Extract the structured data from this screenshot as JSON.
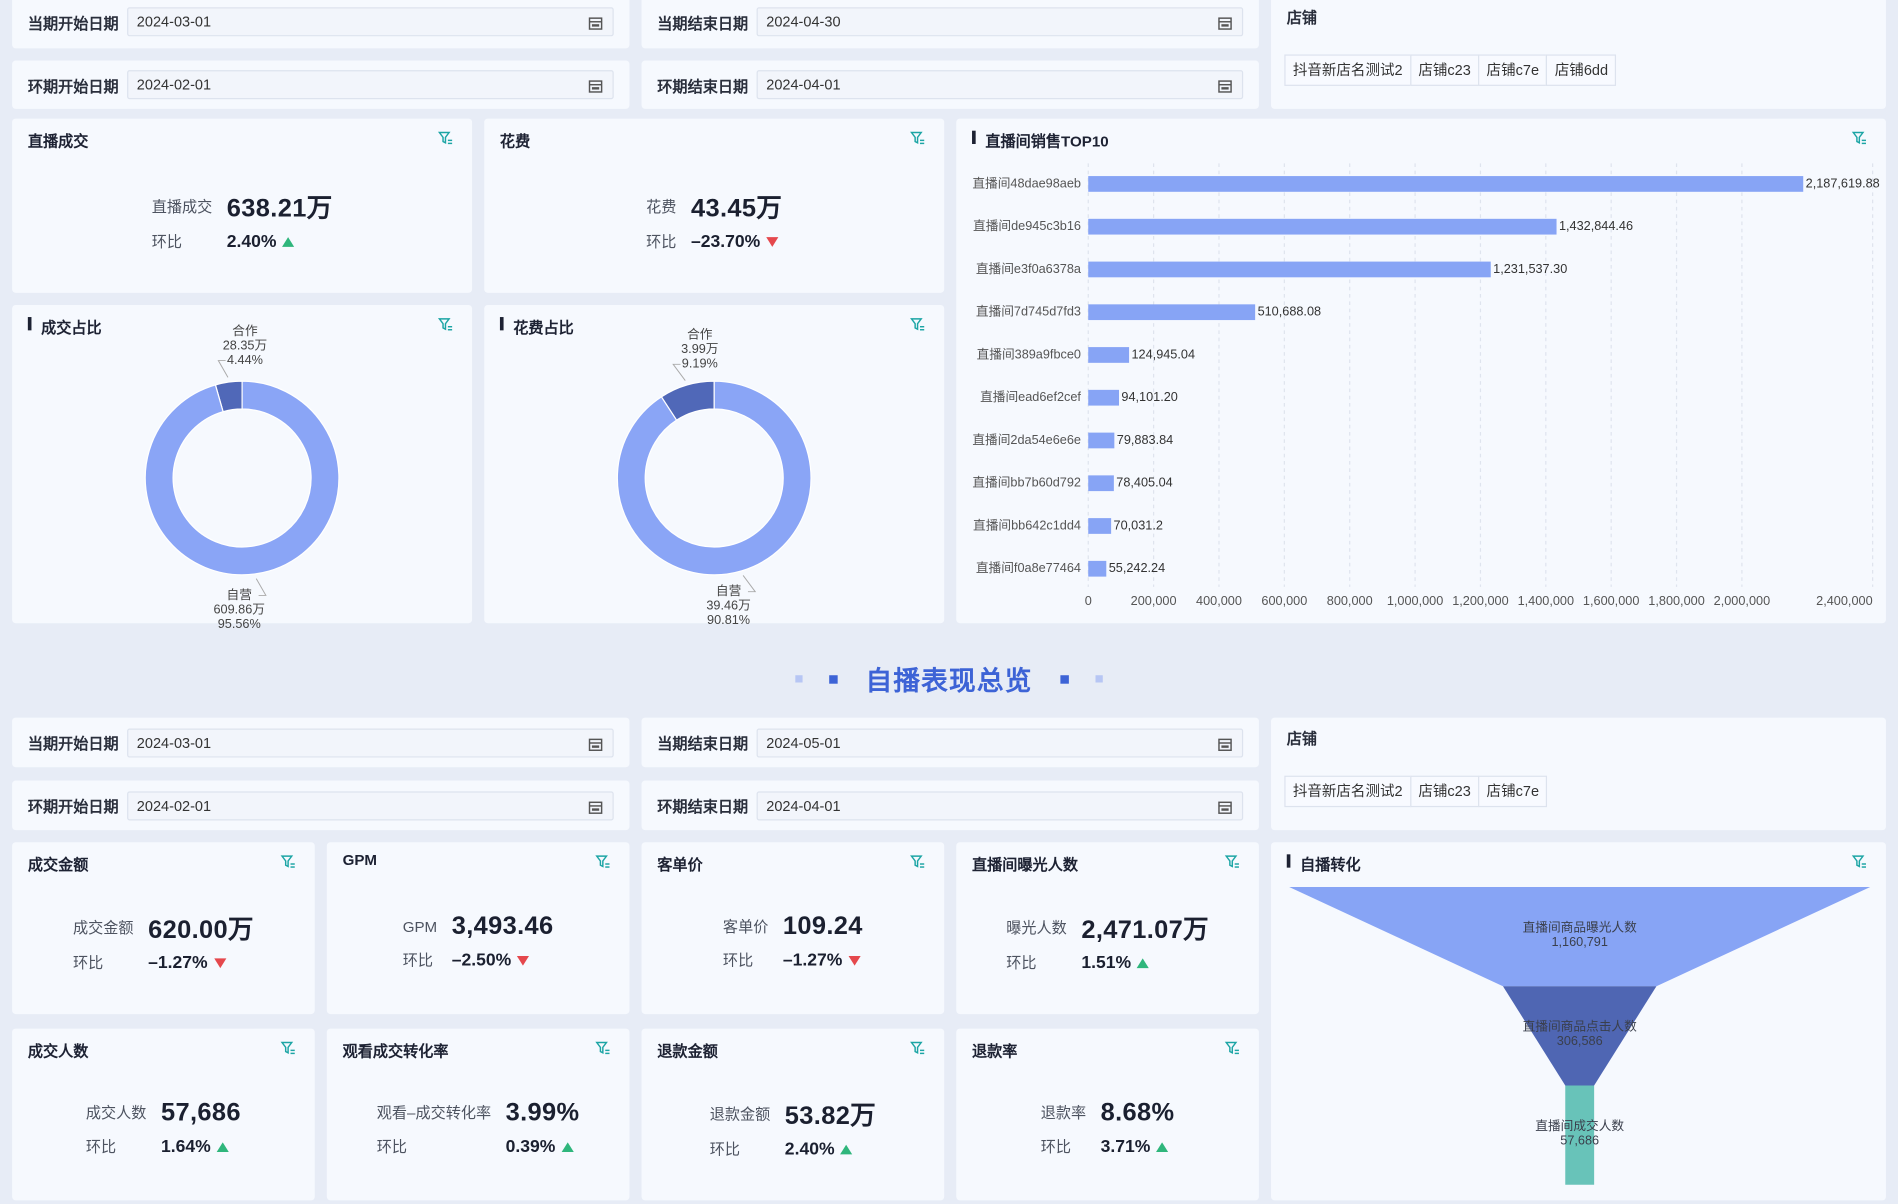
{
  "section1": {
    "filters": [
      {
        "label": "当期开始日期",
        "value": "2024-03-01"
      },
      {
        "label": "当期结束日期",
        "value": "2024-04-30"
      },
      {
        "label": "环期开始日期",
        "value": "2024-02-01"
      },
      {
        "label": "环期结束日期",
        "value": "2024-04-01"
      }
    ],
    "shop": {
      "label": "店铺",
      "tags": [
        "抖音新店名测试2",
        "店铺c23",
        "店铺c7e",
        "店铺6dd"
      ]
    },
    "kpis": [
      {
        "title": "直播成交",
        "label": "直播成交",
        "value": "638.21万",
        "change_label": "环比",
        "change": "2.40%",
        "trend": "up"
      },
      {
        "title": "花费",
        "label": "花费",
        "value": "43.45万",
        "change_label": "环比",
        "change": "–23.70%",
        "trend": "down"
      }
    ]
  },
  "section_title": "自播表现总览",
  "section2": {
    "filters": [
      {
        "label": "当期开始日期",
        "value": "2024-03-01"
      },
      {
        "label": "当期结束日期",
        "value": "2024-05-01"
      },
      {
        "label": "环期开始日期",
        "value": "2024-02-01"
      },
      {
        "label": "环期结束日期",
        "value": "2024-04-01"
      }
    ],
    "shop": {
      "label": "店铺",
      "tags": [
        "抖音新店名测试2",
        "店铺c23",
        "店铺c7e"
      ]
    },
    "kpis": [
      {
        "title": "成交金额",
        "label": "成交金额",
        "value": "620.00万",
        "change_label": "环比",
        "change": "–1.27%",
        "trend": "down"
      },
      {
        "title": "GPM",
        "label": "GPM",
        "value": "3,493.46",
        "change_label": "环比",
        "change": "–2.50%",
        "trend": "down"
      },
      {
        "title": "客单价",
        "label": "客单价",
        "value": "109.24",
        "change_label": "环比",
        "change": "–1.27%",
        "trend": "down"
      },
      {
        "title": "直播间曝光人数",
        "label": "曝光人数",
        "value": "2,471.07万",
        "change_label": "环比",
        "change": "1.51%",
        "trend": "up"
      },
      {
        "title": "成交人数",
        "label": "成交人数",
        "value": "57,686",
        "change_label": "环比",
        "change": "1.64%",
        "trend": "up"
      },
      {
        "title": "观看成交转化率",
        "label": "观看–成交转化率",
        "value": "3.99%",
        "change_label": "环比",
        "change": "0.39%",
        "trend": "up"
      },
      {
        "title": "退款金额",
        "label": "退款金额",
        "value": "53.82万",
        "change_label": "环比",
        "change": "2.40%",
        "trend": "up"
      },
      {
        "title": "退款率",
        "label": "退款率",
        "value": "8.68%",
        "change_label": "环比",
        "change": "3.71%",
        "trend": "up"
      }
    ]
  },
  "chart_data": [
    {
      "type": "pie",
      "donut": true,
      "title": "成交占比",
      "categories": [
        "合作",
        "自营"
      ],
      "values": [
        28.35,
        609.86
      ],
      "value_labels": [
        "28.35万",
        "609.86万"
      ],
      "percent_labels": [
        "4.44%",
        "95.56%"
      ],
      "colors": [
        "#5068b8",
        "#8aa5f6"
      ]
    },
    {
      "type": "pie",
      "donut": true,
      "title": "花费占比",
      "categories": [
        "合作",
        "自营"
      ],
      "values": [
        3.99,
        39.46
      ],
      "value_labels": [
        "3.99万",
        "39.46万"
      ],
      "percent_labels": [
        "9.19%",
        "90.81%"
      ],
      "colors": [
        "#5068b8",
        "#8aa5f6"
      ]
    },
    {
      "type": "bar",
      "orientation": "horizontal",
      "title": "直播间销售TOP10",
      "categories": [
        "直播间48dae98aeb",
        "直播间de945c3b16",
        "直播间e3f0a6378a",
        "直播间7d745d7fd3",
        "直播间389a9fbce0",
        "直播间ead6ef2cef",
        "直播间2da54e6e6e",
        "直播间bb7b60d792",
        "直播间bb642c1dd4",
        "直播间f0a8e77464"
      ],
      "values": [
        2187619.88,
        1432844.46,
        1231537.3,
        510688.08,
        124945.04,
        94101.2,
        79883.84,
        78405.04,
        70031.2,
        55242.24
      ],
      "value_labels": [
        "2,187,619.88",
        "1,432,844.46",
        "1,231,537.30",
        "510,688.08",
        "124,945.04",
        "94,101.20",
        "79,883.84",
        "78,405.04",
        "70,031.2",
        "55,242.24"
      ],
      "color": "#87a4f5",
      "xlim": [
        0,
        2400000
      ],
      "xticks": [
        0,
        {
          "value": 200000,
          "label": "200,000"
        },
        {
          "value": 400000,
          "label": "400,000"
        },
        {
          "value": 600000,
          "label": "600,000"
        },
        {
          "value": 800000,
          "label": "800,000"
        },
        {
          "value": 1000000,
          "label": "1,000,000"
        },
        {
          "value": 1200000,
          "label": "1,200,000"
        },
        {
          "value": 1400000,
          "label": "1,400,000"
        },
        {
          "value": 1600000,
          "label": "1,600,000"
        },
        {
          "value": 1800000,
          "label": "1,800,000"
        },
        {
          "value": 2000000,
          "label": "2,000,000"
        },
        {
          "value": 2400000,
          "label": "2,400,000"
        }
      ],
      "grid": true
    },
    {
      "type": "funnel",
      "title": "自播转化",
      "categories": [
        "直播间商品曝光人数",
        "直播间商品点击人数",
        "直播间成交人数"
      ],
      "values": [
        1160791,
        306586,
        57686
      ],
      "value_labels": [
        "1,160,791",
        "306,586",
        "57,686"
      ],
      "colors": [
        "#87a4f5",
        "#4f66b3",
        "#68c3b9"
      ]
    }
  ]
}
